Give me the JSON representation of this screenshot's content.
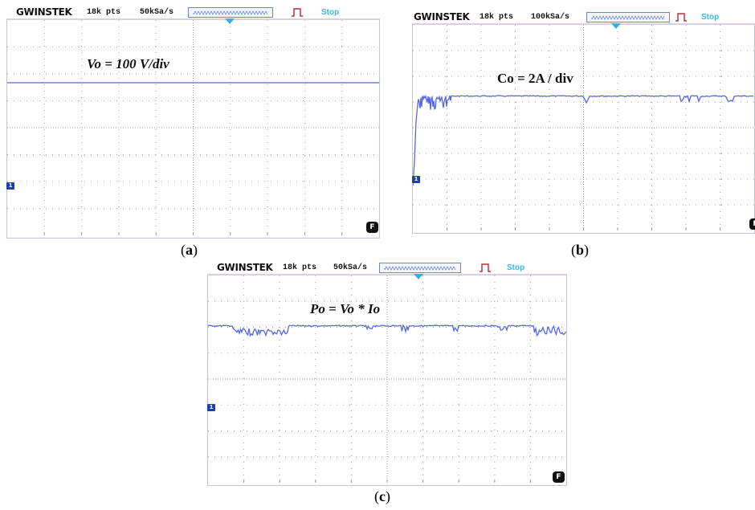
{
  "panels": [
    {
      "id": "a",
      "brand": "GWINSTEK",
      "record_length": "18k pts",
      "sample_rate": "50kSa/s",
      "run_state": "Stop",
      "channel": "1",
      "f_badge": "F",
      "annotation": "Vo = 100 V/div",
      "caption_open": "(",
      "caption_letter": "a",
      "caption_close": ")"
    },
    {
      "id": "b",
      "brand": "GWINSTEK",
      "record_length": "18k pts",
      "sample_rate": "100kSa/s",
      "run_state": "Stop",
      "channel": "1",
      "f_badge": "F",
      "annotation": "Co = 2A / div",
      "caption_open": "(",
      "caption_letter": "b",
      "caption_close": ")"
    },
    {
      "id": "c",
      "brand": "GWINSTEK",
      "record_length": "18k pts",
      "sample_rate": "50kSa/s",
      "run_state": "Stop",
      "channel": "1",
      "f_badge": "F",
      "annotation": "Po = Vo * Io",
      "caption_open": "(",
      "caption_letter": "c",
      "caption_close": ")"
    }
  ],
  "colors": {
    "trace": "#5566ee",
    "grid_dots": "#9a9a9a",
    "stop_text": "#39b8e6",
    "trigger_marker": "#3aaee0",
    "run_indicator": "#c0303a"
  }
}
